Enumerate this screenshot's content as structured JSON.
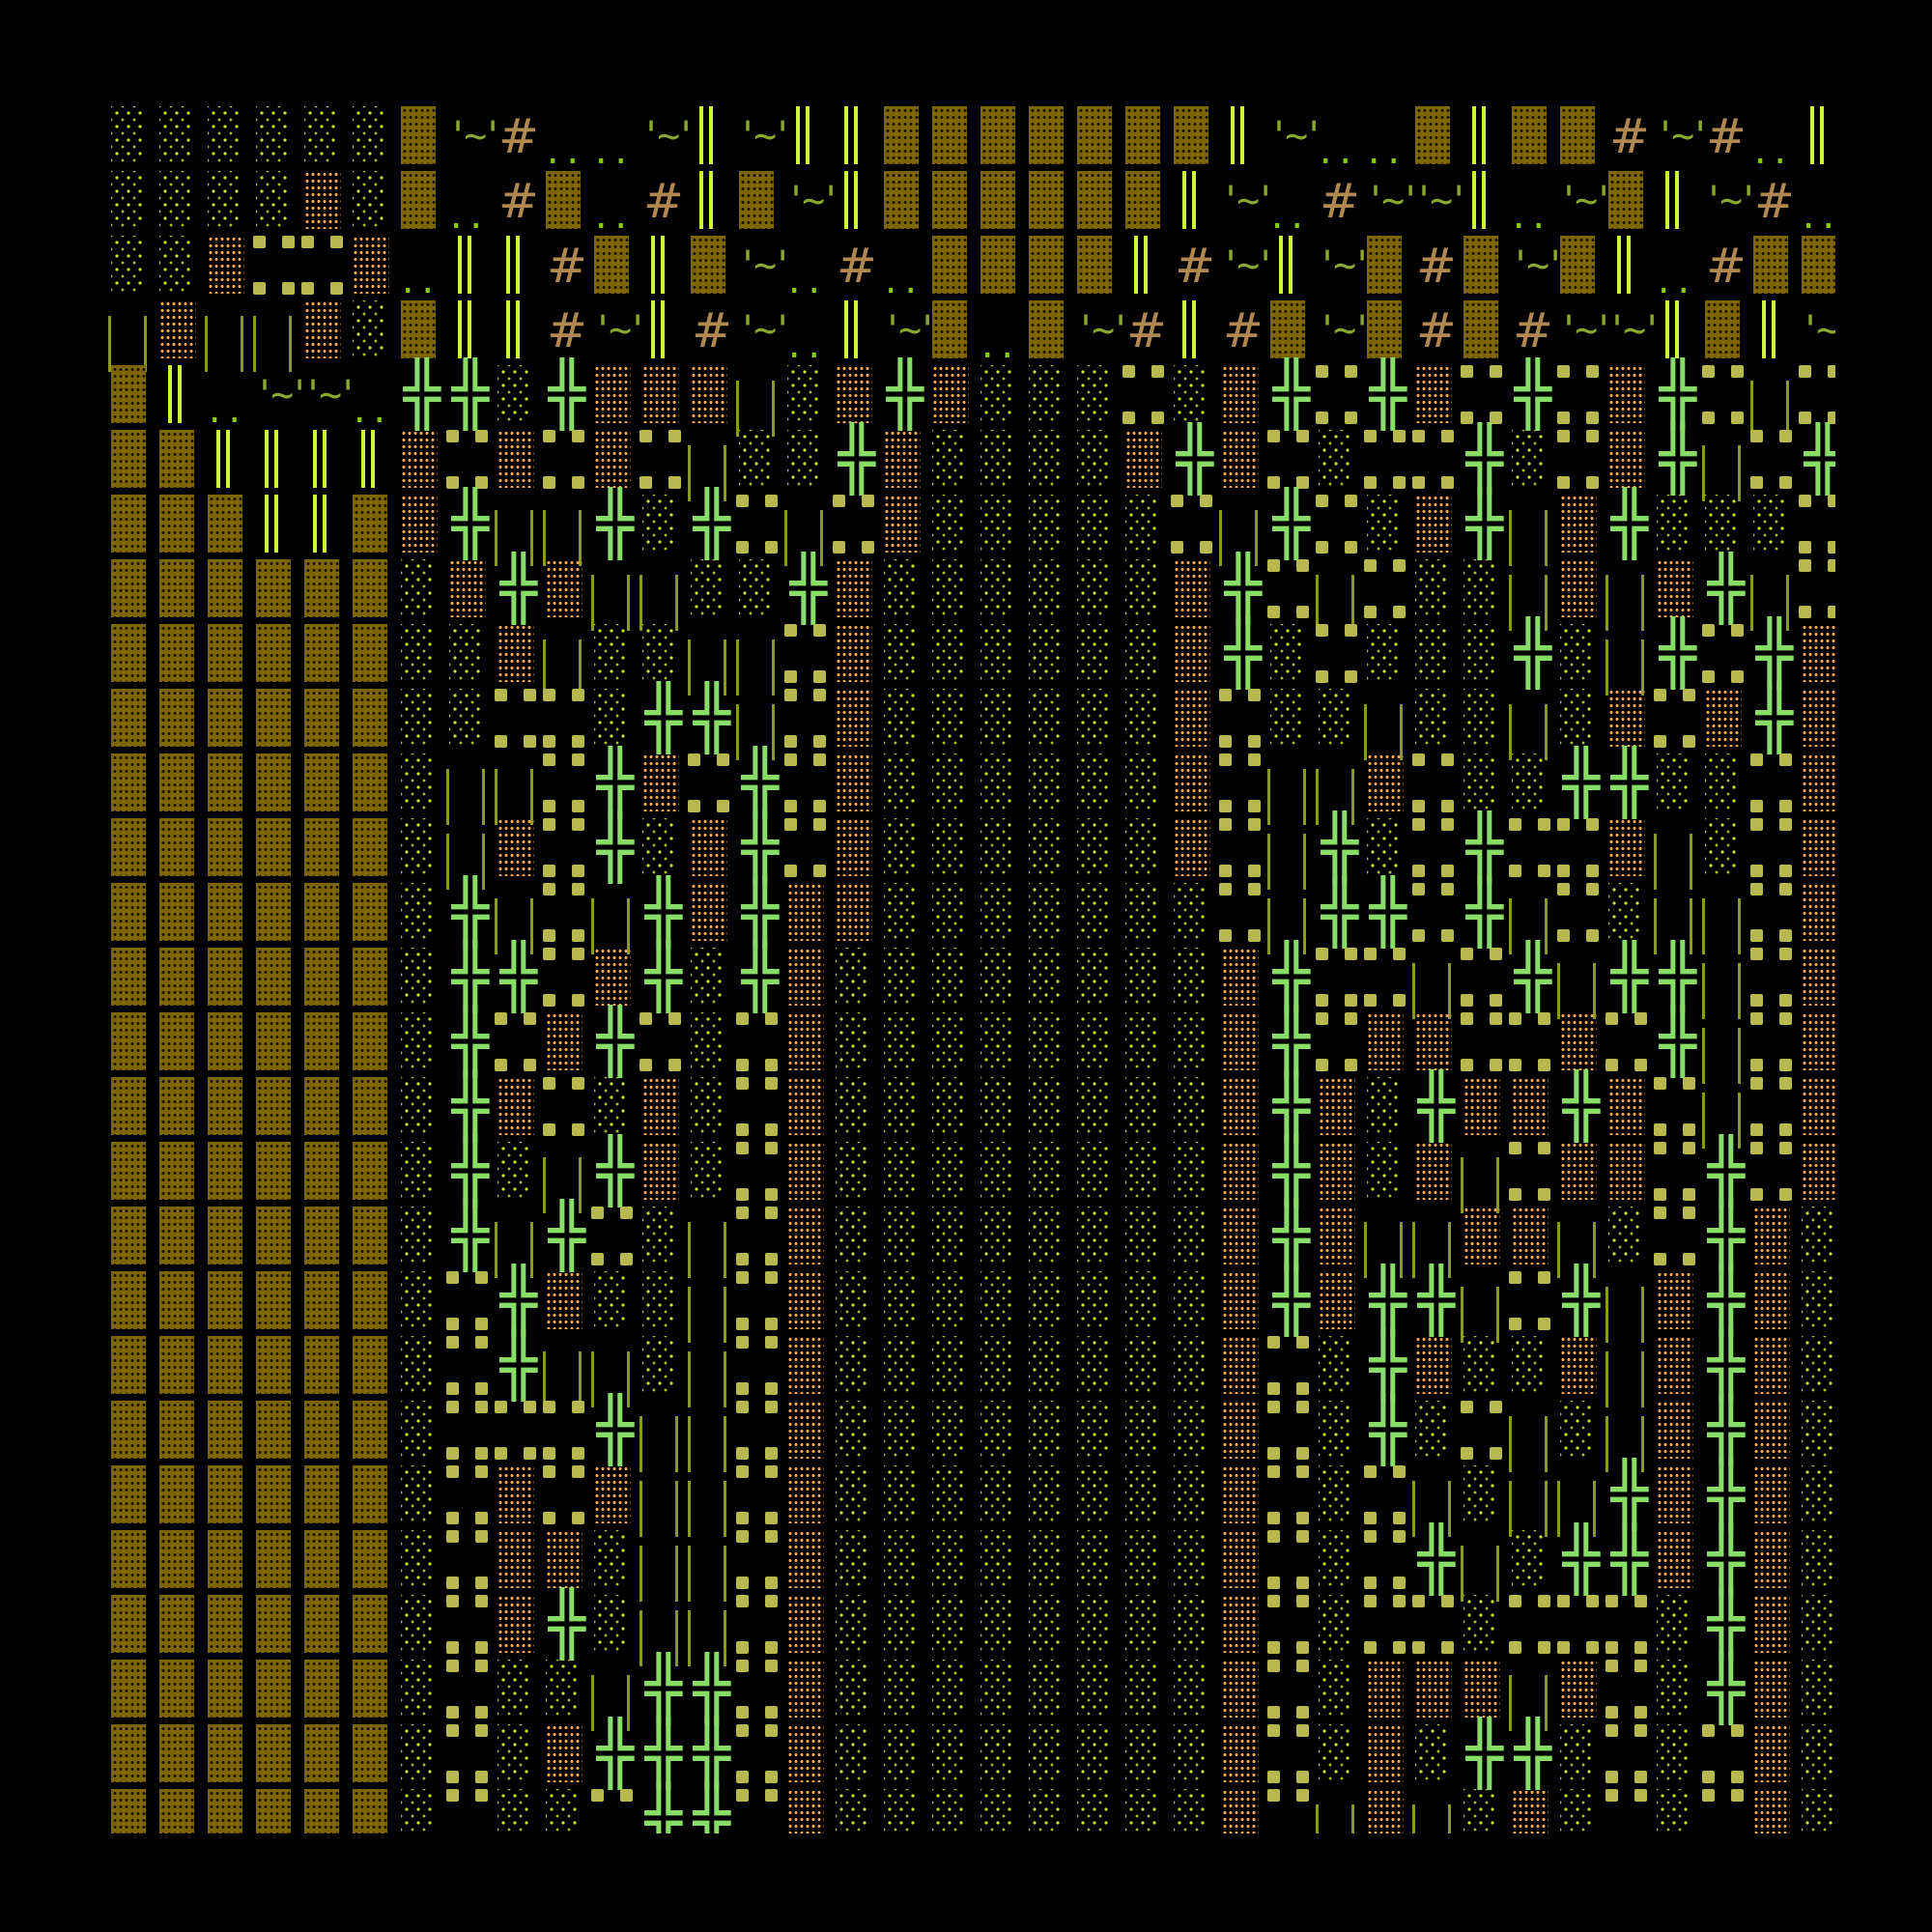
{
  "map": {
    "tiles": {
      "B": {
        "name": "brick-wall",
        "glyph": "",
        "color": "#7d6500"
      },
      "L": {
        "name": "grass-light-shade",
        "glyph": "",
        "color": "#c8e030"
      },
      "O": {
        "name": "sand-orange-shade",
        "glyph": "",
        "color": "#f2a850"
      },
      "W": {
        "name": "water-tilde",
        "glyph": "'~'",
        "color": "#8aa830"
      },
      "H": {
        "name": "hash-rubble",
        "glyph": "#",
        "color": "#b08850"
      },
      "D": {
        "name": "floor-dots",
        "glyph": "..",
        "color": "#88cc00"
      },
      "V": {
        "name": "double-bar-bright",
        "glyph": "",
        "color": "#ccf538"
      },
      "I": {
        "name": "fence-olive",
        "glyph": "",
        "color": "#8a9a20"
      },
      "X": {
        "name": "cross-plant",
        "glyph": "╬",
        "color": "#88dd66"
      },
      "Q": {
        "name": "stone-corners",
        "glyph": "",
        "color": "#b8b850"
      }
    },
    "rows": [
      "LLLLLLBWHDDWVWVVBBBBBBBVWDDBVBBHWHDVB",
      "LLLLOLBDHBDHVBWVBBBBBBVWDHWWVDWBVWHDB",
      "LLOQQODVVHBVBWDHDBBBBVHWVWBHBWBVDHBBD",
      "IOIIOLBVVHWVHWDVWBDBWHVHBWBHBHWWVBVWB",
      "BVDWWDXXLXOOOILOXOLLLQLOXQXOQXQOXQIQX",
      "BBVVVVOQOQOQILLXOLLLLOXOQLQQXLQOXIQXO",
      "BBBVVBOXIIXLXQIQOLLLLLQIXQLOXIOXLLLQO",
      "BBBBBBLOXOIILLXOLLLLLLOXQIQLLIOIOXIQL",
      "BBBBBBLLOILLIIQOLLLLLLOXLQLLLXLIXQXOL",
      "BBBBBBLLQQLXXIQOLLLLLLOQLLILLILOQOXOL",
      "BBBBBBLIIQXOQXQOLLLLLLOQIIOQLLXXLLQOL",
      "BBBBBBLIOQXLOXQOLLLLLLOQIXLQXQQOILQOL",
      "BBBBBBLXIQIXOXOOLLLLLLLQIXXQXIQLIIQOL",
      "BBBBBBLXXQOXLXOLLLLLLLLOXQQIQXIXXIQOL",
      "BBBBBBLXQOXQLQOLLLLLLLLOXQOOQQOQXIQOL",
      "BBBBBBLXOQLOLQOLLLLLLLLOXOLXOOXOQIQOL",
      "BBBBBBLXLIXOLQOLLLLLLLLOXOLOIQOOQXQOL",
      "BBBBBBLXIXQLIQOLLLLLLLLOXOIIOOILQXOLL",
      "BBBBBBLQXOLLIQOLLLLLLLLOXOXXIQXIOXOLL",
      "BBBBBBLQXIILIQOLLLLLLLLOQLXOLLOIOXOLL",
      "BBBBBBLQQQXIIQOLLLLLLLLOQLXLQILIOXOLL",
      "BBBBBBLQOQOIIQOLLLLLLLLOQLQILIIXOXOLL",
      "BBBBBBLQOOLIIQOLLLLLLLLOQLQXILXXOXOLL",
      "BBBBBBLQOXLIIQOLLLLLLLLOQLQQLQQQLXOLL",
      "BBBBBBLQLLIXXQOLLLLLLLLOQLOOOIOQLXOLL",
      "BBBBBBLQLOXXXQOLLLLLLLLOQLOLXXLQLQOLL",
      "BBBBBBLQLLQXXQOLLLLLLLLOQIOILOLQLQOLL"
    ]
  }
}
